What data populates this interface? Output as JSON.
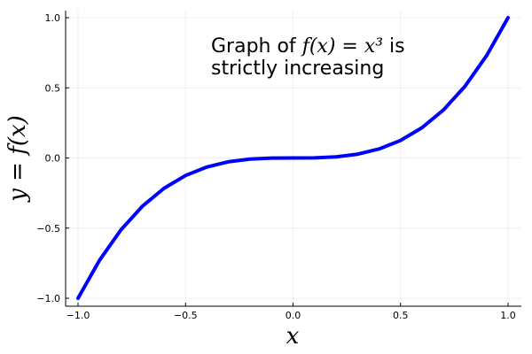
{
  "chart_data": {
    "type": "line",
    "title": "",
    "xlabel": "x",
    "ylabel": "y = f(x)",
    "xlim": [
      -1.0,
      1.0
    ],
    "ylim": [
      -1.0,
      1.0
    ],
    "xticks": [
      -1.0,
      -0.5,
      0.0,
      0.5,
      1.0
    ],
    "yticks": [
      -1.0,
      -0.5,
      0.0,
      0.5,
      1.0
    ],
    "xtick_labels": [
      "−1.0",
      "−0.5",
      "0.0",
      "0.5",
      "1.0"
    ],
    "ytick_labels": [
      "−1.0",
      "−0.5",
      "0.0",
      "0.5",
      "1.0"
    ],
    "grid": true,
    "series": [
      {
        "color": "#0000ff",
        "x": [
          -1.0,
          -0.9,
          -0.8,
          -0.7,
          -0.6,
          -0.5,
          -0.4,
          -0.3,
          -0.2,
          -0.1,
          0.0,
          0.1,
          0.2,
          0.3,
          0.4,
          0.5,
          0.6,
          0.7,
          0.8,
          0.9,
          1.0
        ],
        "y": [
          -1.0,
          -0.729,
          -0.512,
          -0.343,
          -0.216,
          -0.125,
          -0.064,
          -0.027,
          -0.008,
          -0.001,
          0.0,
          0.001,
          0.008,
          0.027,
          0.064,
          0.125,
          0.216,
          0.343,
          0.512,
          0.729,
          1.0
        ]
      }
    ],
    "annotation": {
      "line1_prefix": "Graph of ",
      "line1_math": "f(x) = x³",
      "line1_suffix": " is",
      "line2": "strictly increasing"
    }
  }
}
